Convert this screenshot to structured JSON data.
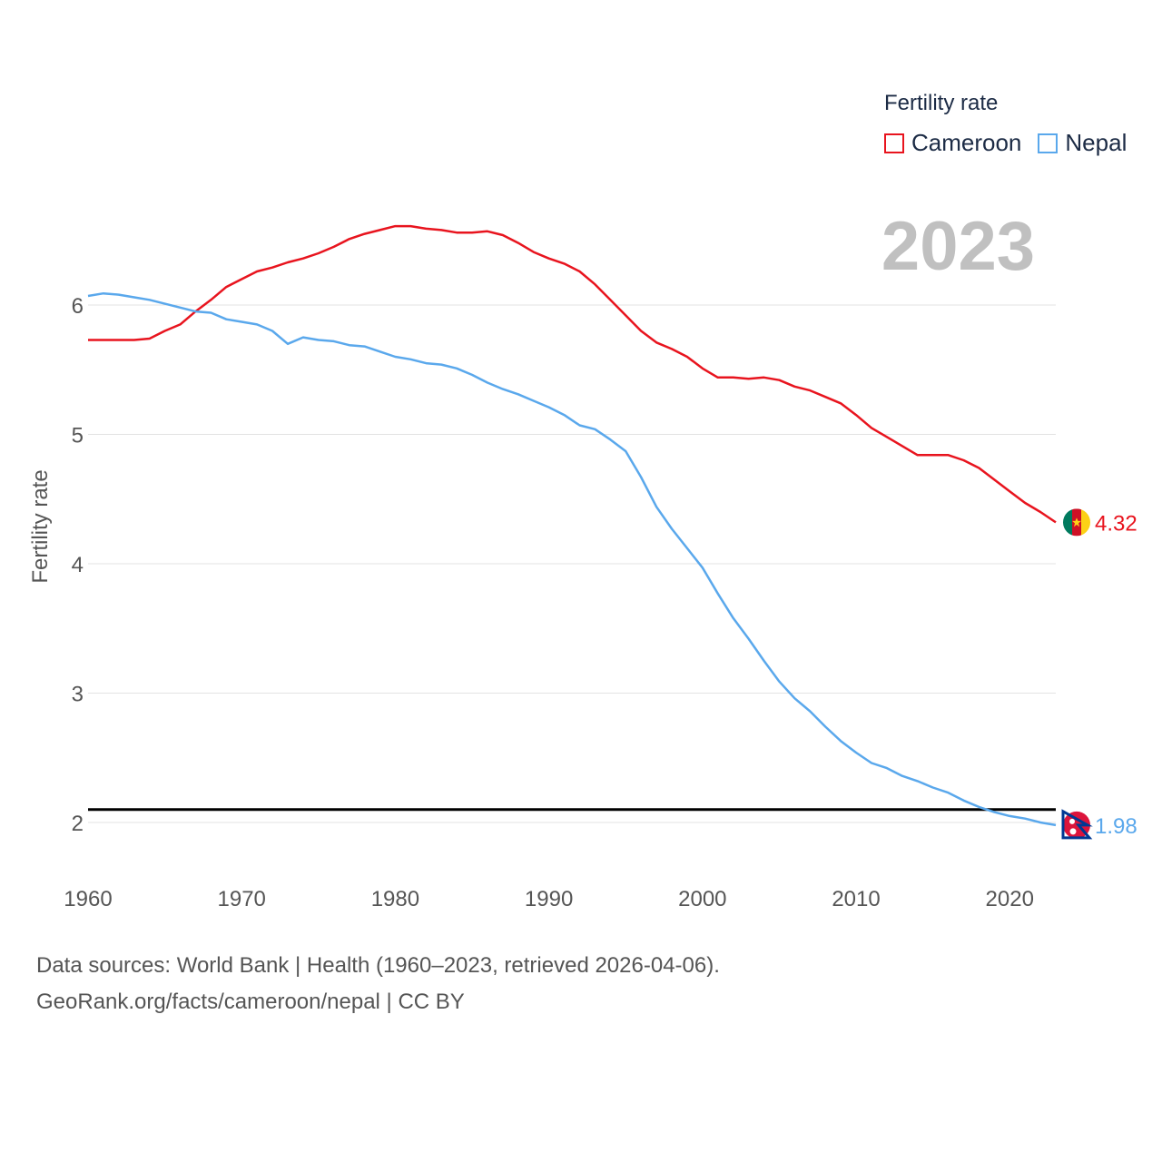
{
  "legend": {
    "title": "Fertility rate",
    "items": [
      {
        "label": "Cameroon",
        "color": "#e8141e"
      },
      {
        "label": "Nepal",
        "color": "#5aa8ec"
      }
    ]
  },
  "year_label": "2023",
  "source": {
    "line1": "Data sources: World Bank | Health (1960–2023, retrieved 2026-04-06).",
    "line2": "GeoRank.org/facts/cameroon/nepal | CC BY"
  },
  "chart_data": {
    "type": "line",
    "title": "Fertility rate",
    "xlabel": "",
    "ylabel": "Fertility rate",
    "xlim": [
      1960,
      2023
    ],
    "ylim": [
      1.8,
      7.0
    ],
    "yticks": [
      2,
      3,
      4,
      5,
      6
    ],
    "xticks": [
      1960,
      1970,
      1980,
      1990,
      2000,
      2010,
      2020
    ],
    "grid": true,
    "reference_line": 2.1,
    "x": [
      1960,
      1961,
      1962,
      1963,
      1964,
      1965,
      1966,
      1967,
      1968,
      1969,
      1970,
      1971,
      1972,
      1973,
      1974,
      1975,
      1976,
      1977,
      1978,
      1979,
      1980,
      1981,
      1982,
      1983,
      1984,
      1985,
      1986,
      1987,
      1988,
      1989,
      1990,
      1991,
      1992,
      1993,
      1994,
      1995,
      1996,
      1997,
      1998,
      1999,
      2000,
      2001,
      2002,
      2003,
      2004,
      2005,
      2006,
      2007,
      2008,
      2009,
      2010,
      2011,
      2012,
      2013,
      2014,
      2015,
      2016,
      2017,
      2018,
      2019,
      2020,
      2021,
      2022,
      2023
    ],
    "series": [
      {
        "name": "Cameroon",
        "color": "#e8141e",
        "end_label": "4.32",
        "values": [
          5.73,
          5.73,
          5.73,
          5.73,
          5.74,
          5.8,
          5.85,
          5.95,
          6.04,
          6.14,
          6.2,
          6.26,
          6.29,
          6.33,
          6.36,
          6.4,
          6.45,
          6.51,
          6.55,
          6.58,
          6.61,
          6.61,
          6.59,
          6.58,
          6.56,
          6.56,
          6.57,
          6.54,
          6.48,
          6.41,
          6.36,
          6.32,
          6.26,
          6.16,
          6.04,
          5.92,
          5.8,
          5.71,
          5.66,
          5.6,
          5.51,
          5.44,
          5.44,
          5.43,
          5.44,
          5.42,
          5.37,
          5.34,
          5.29,
          5.24,
          5.15,
          5.05,
          4.98,
          4.91,
          4.84,
          4.84,
          4.84,
          4.8,
          4.74,
          4.65,
          4.56,
          4.47,
          4.4,
          4.32
        ]
      },
      {
        "name": "Nepal",
        "color": "#5aa8ec",
        "end_label": "1.98",
        "values": [
          6.07,
          6.09,
          6.08,
          6.06,
          6.04,
          6.01,
          5.98,
          5.95,
          5.94,
          5.89,
          5.87,
          5.85,
          5.8,
          5.7,
          5.75,
          5.73,
          5.72,
          5.69,
          5.68,
          5.64,
          5.6,
          5.58,
          5.55,
          5.54,
          5.51,
          5.46,
          5.4,
          5.35,
          5.31,
          5.26,
          5.21,
          5.15,
          5.07,
          5.04,
          4.96,
          4.87,
          4.67,
          4.44,
          4.27,
          4.12,
          3.97,
          3.77,
          3.58,
          3.42,
          3.25,
          3.09,
          2.96,
          2.86,
          2.74,
          2.63,
          2.54,
          2.46,
          2.42,
          2.36,
          2.32,
          2.27,
          2.23,
          2.17,
          2.12,
          2.08,
          2.05,
          2.03,
          2.0,
          1.98
        ]
      }
    ]
  }
}
